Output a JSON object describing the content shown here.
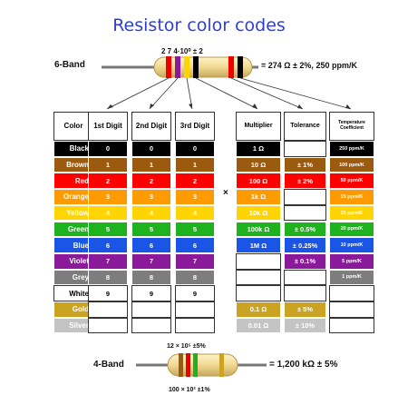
{
  "title": "Resistor color codes",
  "six_band": {
    "label": "6-Band",
    "code": "2 7 4·10⁰ ± 2",
    "result": "= 274 Ω ± 2%, 250 ppm/K"
  },
  "four_band": {
    "label": "4-Band",
    "code_top": "12 × 10⁵ ±5%",
    "code_bottom": "100 × 10² ±1%",
    "result": "= 1,200 kΩ ± 5%"
  },
  "multiply_sign": "×",
  "headers": {
    "color": "Color",
    "digit1": "1st Digit",
    "digit2": "2nd Digit",
    "digit3": "3rd Digit",
    "multiplier": "Multiplier",
    "tolerance": "Tolerance",
    "tempco": "Temperature Coefficient"
  },
  "rows": [
    {
      "name": "Black",
      "color": "#000000",
      "text": "#ffffff",
      "digit": "0",
      "multiplier": "1 Ω",
      "tolerance": "",
      "tempco": "250 ppm/K"
    },
    {
      "name": "Brown",
      "color": "#9a5a10",
      "text": "#ffffff",
      "digit": "1",
      "multiplier": "10 Ω",
      "tolerance": "± 1%",
      "tempco": "100 ppm/K"
    },
    {
      "name": "Red",
      "color": "#ff0000",
      "text": "#ffffff",
      "digit": "2",
      "multiplier": "100 Ω",
      "tolerance": "± 2%",
      "tempco": "50 ppm/K"
    },
    {
      "name": "Orange",
      "color": "#ff9a00",
      "text": "#ffffff",
      "digit": "3",
      "multiplier": "1k Ω",
      "tolerance": "",
      "tempco": "15 ppm/K"
    },
    {
      "name": "Yellow",
      "color": "#ffd400",
      "text": "#ffffff",
      "digit": "4",
      "multiplier": "10k Ω",
      "tolerance": "",
      "tempco": "25 ppm/K"
    },
    {
      "name": "Green",
      "color": "#1fb21f",
      "text": "#ffffff",
      "digit": "5",
      "multiplier": "100k Ω",
      "tolerance": "± 0.5%",
      "tempco": "20 ppm/K"
    },
    {
      "name": "Blue",
      "color": "#1a55e6",
      "text": "#ffffff",
      "digit": "6",
      "multiplier": "1M Ω",
      "tolerance": "± 0.25%",
      "tempco": "10 ppm/K"
    },
    {
      "name": "Violet",
      "color": "#8a1a99",
      "text": "#ffffff",
      "digit": "7",
      "multiplier": "",
      "tolerance": "± 0.1%",
      "tempco": "5 ppm/K"
    },
    {
      "name": "Grey",
      "color": "#7d7d7d",
      "text": "#ffffff",
      "digit": "8",
      "multiplier": "",
      "tolerance": "",
      "tempco": "1 ppm/K"
    },
    {
      "name": "White",
      "color": "#ffffff",
      "text": "#000000",
      "digit": "9",
      "multiplier": "",
      "tolerance": "",
      "tempco": ""
    },
    {
      "name": "Gold",
      "color": "#c9a321",
      "text": "#ffffff",
      "digit": "",
      "multiplier": "0.1 Ω",
      "tolerance": "± 5%",
      "tempco": ""
    },
    {
      "name": "Silver",
      "color": "#c4c4c4",
      "text": "#ffffff",
      "digit": "",
      "multiplier": "0.01 Ω",
      "tolerance": "± 10%",
      "tempco": ""
    }
  ]
}
